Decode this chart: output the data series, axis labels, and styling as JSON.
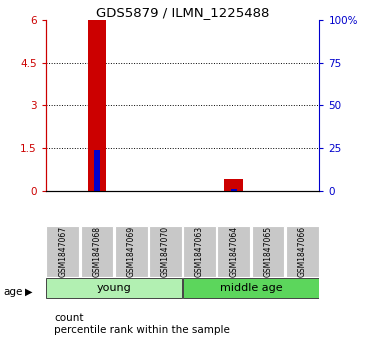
{
  "title": "GDS5879 / ILMN_1225488",
  "samples": [
    "GSM1847067",
    "GSM1847068",
    "GSM1847069",
    "GSM1847070",
    "GSM1847063",
    "GSM1847064",
    "GSM1847065",
    "GSM1847066"
  ],
  "count_values": [
    0,
    6.0,
    0,
    0,
    0,
    0.42,
    0,
    0
  ],
  "percentile_values": [
    0,
    1.45,
    0,
    0,
    0,
    0.06,
    0,
    0
  ],
  "ylim_left": [
    0,
    6
  ],
  "ylim_right": [
    0,
    100
  ],
  "yticks_left": [
    0,
    1.5,
    3,
    4.5,
    6
  ],
  "ytick_labels_left": [
    "0",
    "1.5",
    "3",
    "4.5",
    "6"
  ],
  "yticks_right": [
    0,
    25,
    50,
    75,
    100
  ],
  "ytick_labels_right": [
    "0",
    "25",
    "50",
    "75",
    "100%"
  ],
  "groups": [
    {
      "label": "young",
      "start": 0,
      "end": 3,
      "color": "#b2f0b2"
    },
    {
      "label": "middle age",
      "start": 4,
      "end": 7,
      "color": "#5cd65c"
    }
  ],
  "bar_color": "#cc0000",
  "percentile_color": "#0000cc",
  "sample_box_color": "#c8c8c8",
  "bar_width": 0.55,
  "percentile_bar_width": 0.18,
  "legend_count_label": "count",
  "legend_percentile_label": "percentile rank within the sample",
  "age_label": "age",
  "left_axis_color": "#cc0000",
  "right_axis_color": "#0000cc",
  "grid_yticks": [
    1.5,
    3,
    4.5
  ]
}
